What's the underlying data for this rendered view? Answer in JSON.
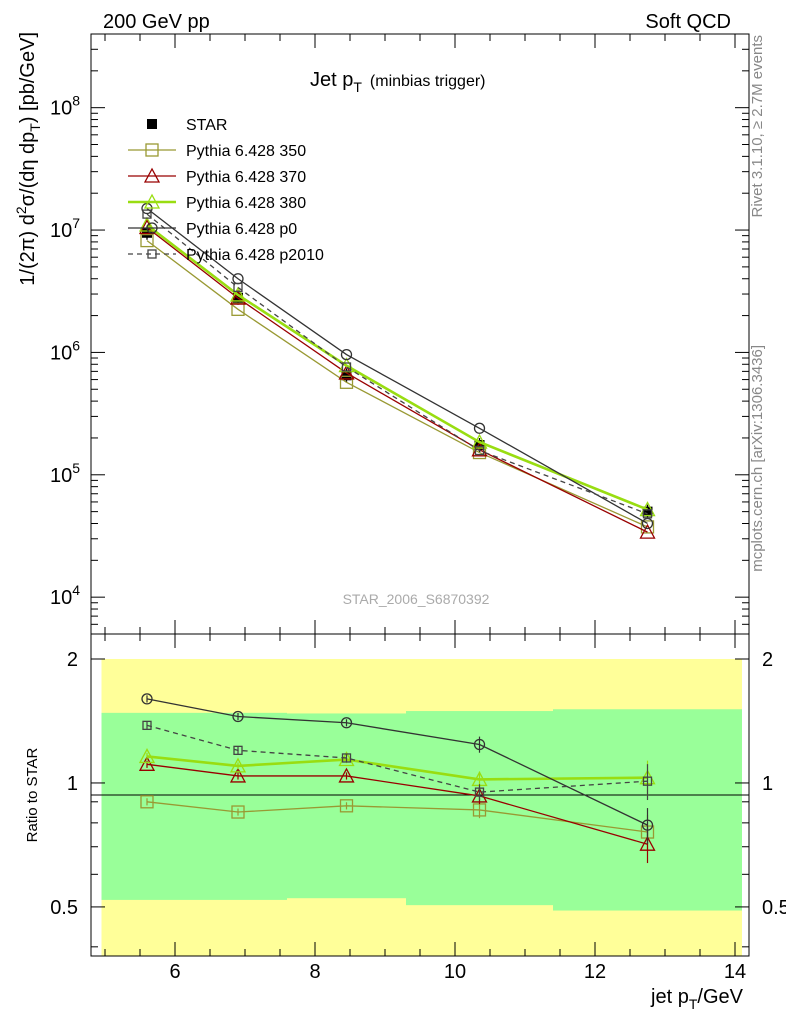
{
  "header": {
    "left": "200 GeV pp",
    "right": "Soft QCD"
  },
  "side_text": {
    "top": "Rivet 3.1.10, ≥ 2.7M events",
    "bottom": "mcplots.cern.ch [arXiv:1306.3436]"
  },
  "watermark": "STAR_2006_S6870392",
  "chart_data": [
    {
      "type": "line",
      "title_main": "Jet p",
      "title_sub": "T",
      "title_note": "(minbias trigger)",
      "ylabel": "1/(2π) d²σ/(dη dp_T) [pb/GeV]",
      "yscale": "log",
      "xlim": [
        4.8,
        14.2
      ],
      "ylim": [
        5000,
        400000000
      ],
      "ytick_labels": [
        "10^4",
        "10^5",
        "10^6",
        "10^7",
        "10^8"
      ],
      "legend_position": "top-left",
      "grid": false,
      "x": [
        5.6,
        6.9,
        8.45,
        10.35,
        12.75
      ],
      "series": [
        {
          "name": "STAR",
          "style": "data",
          "color": "#000000",
          "marker": "filled-square",
          "values": [
            9500000,
            2800000,
            650000,
            175000,
            50000
          ]
        },
        {
          "name": "Pythia 6.428 350",
          "style": "mc",
          "color": "#999933",
          "marker": "open-square",
          "values": [
            8200000,
            2250000,
            570000,
            152000,
            37500
          ]
        },
        {
          "name": "Pythia 6.428 370",
          "style": "mc",
          "color": "#990000",
          "marker": "open-triangle",
          "values": [
            10500000,
            2780000,
            680000,
            160000,
            34000
          ]
        },
        {
          "name": "Pythia 6.428 380",
          "style": "mc-thick",
          "color": "#99dd11",
          "marker": "open-triangle",
          "values": [
            11000000,
            2950000,
            780000,
            185000,
            52000
          ]
        },
        {
          "name": "Pythia 6.428 p0",
          "style": "mc",
          "color": "#333333",
          "marker": "open-circle",
          "values": [
            15000000,
            4000000,
            960000,
            240000,
            40000
          ]
        },
        {
          "name": "Pythia 6.428 p2010",
          "style": "mc-dashed",
          "color": "#444444",
          "marker": "open-square",
          "values": [
            13500000,
            3400000,
            760000,
            158000,
            48000
          ]
        }
      ]
    },
    {
      "type": "line",
      "ylabel": "Ratio to STAR",
      "xlabel_main": "jet p",
      "xlabel_sub": "T",
      "xlabel_unit": "/GeV",
      "ylim": [
        0.38,
        2.3
      ],
      "xtick_labels": [
        "6",
        "8",
        "10",
        "12",
        "14"
      ],
      "ytick_labels": [
        "0.5",
        "1",
        "2"
      ],
      "bands": {
        "bins": [
          [
            4.95,
            6.3
          ],
          [
            6.3,
            7.6
          ],
          [
            7.6,
            9.3
          ],
          [
            9.3,
            11.4
          ],
          [
            11.4,
            14.1
          ]
        ],
        "inner": [
          [
            0.52,
            1.48
          ],
          [
            0.52,
            1.48
          ],
          [
            0.525,
            1.475
          ],
          [
            0.505,
            1.495
          ],
          [
            0.49,
            1.51
          ]
        ],
        "outer": [
          [
            0.0,
            2.0
          ],
          [
            0.0,
            2.0
          ],
          [
            0.0,
            2.0
          ],
          [
            0.0,
            2.0
          ],
          [
            0.0,
            2.0
          ]
        ],
        "inner_color": "#99ff99",
        "outer_color": "#ffff99"
      },
      "x": [
        5.6,
        6.9,
        8.45,
        10.35,
        12.75
      ],
      "series": [
        {
          "name": "Pythia 6.428 350",
          "color": "#999933",
          "marker": "open-square",
          "style": "mc",
          "values": [
            0.9,
            0.85,
            0.88,
            0.86,
            0.76
          ]
        },
        {
          "name": "Pythia 6.428 370",
          "color": "#990000",
          "marker": "open-triangle",
          "style": "mc",
          "values": [
            1.11,
            1.04,
            1.04,
            0.93,
            0.71
          ]
        },
        {
          "name": "Pythia 6.428 380",
          "color": "#99dd11",
          "marker": "open-triangle",
          "style": "mc-thick",
          "values": [
            1.16,
            1.1,
            1.14,
            1.02,
            1.03
          ]
        },
        {
          "name": "Pythia 6.428 p0",
          "color": "#333333",
          "marker": "open-circle",
          "style": "mc",
          "values": [
            1.6,
            1.45,
            1.4,
            1.24,
            0.79
          ]
        },
        {
          "name": "Pythia 6.428 p2010",
          "color": "#444444",
          "marker": "open-square",
          "style": "mc-dashed",
          "values": [
            1.38,
            1.2,
            1.15,
            0.95,
            1.01
          ]
        }
      ]
    }
  ]
}
